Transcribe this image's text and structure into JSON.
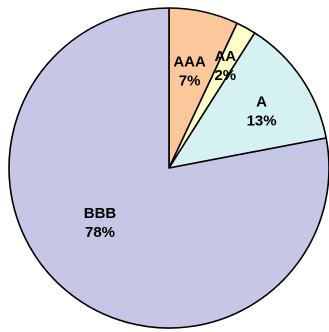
{
  "chart_data": {
    "type": "pie",
    "title": "",
    "start_angle": "12 o'clock",
    "direction": "clockwise",
    "legend": "none",
    "slices": [
      {
        "label": "AAA",
        "value_text": "7%",
        "value": 7,
        "color": "#FBC89C"
      },
      {
        "label": "AA",
        "value_text": "2%",
        "value": 2,
        "color": "#FFFFC6"
      },
      {
        "label": "A",
        "value_text": "13%",
        "value": 13,
        "color": "#D6F1F1"
      },
      {
        "label": "BBB",
        "value_text": "78%",
        "value": 78,
        "color": "#C6C6E6"
      }
    ]
  }
}
